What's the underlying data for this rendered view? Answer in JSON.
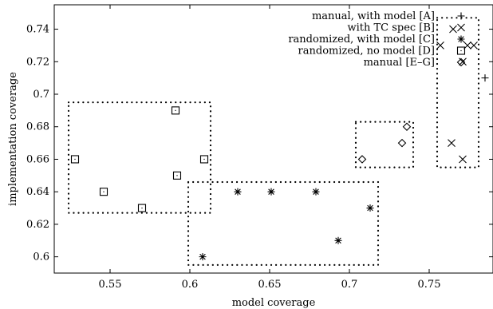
{
  "chart_data": {
    "type": "scatter",
    "xlabel": "model coverage",
    "ylabel": "implementation coverage",
    "xlim": [
      0.515,
      0.79
    ],
    "ylim": [
      0.59,
      0.755
    ],
    "x_ticks": [
      0.55,
      0.6,
      0.65,
      0.7,
      0.75
    ],
    "x_tick_labels": [
      "0.55",
      "0.6",
      "0.65",
      "0.7",
      "0.75"
    ],
    "y_ticks": [
      0.6,
      0.62,
      0.64,
      0.66,
      0.68,
      0.7,
      0.72,
      0.74
    ],
    "y_tick_labels": [
      "0.6",
      "0.62",
      "0.64",
      "0.66",
      "0.68",
      "0.7",
      "0.72",
      "0.74"
    ],
    "legend_position": "top-right",
    "series": [
      {
        "name": "manual, with model [A]",
        "marker": "plus",
        "points": [
          [
            0.785,
            0.71
          ]
        ]
      },
      {
        "name": "with TC spec [B]",
        "marker": "cross",
        "points": [
          [
            0.765,
            0.74
          ],
          [
            0.757,
            0.73
          ],
          [
            0.774,
            0.73
          ],
          [
            0.778,
            0.73
          ],
          [
            0.771,
            0.72
          ],
          [
            0.764,
            0.67
          ],
          [
            0.771,
            0.66
          ]
        ]
      },
      {
        "name": "randomized, with model [C]",
        "marker": "star",
        "points": [
          [
            0.608,
            0.6
          ],
          [
            0.63,
            0.64
          ],
          [
            0.651,
            0.64
          ],
          [
            0.679,
            0.64
          ],
          [
            0.713,
            0.63
          ],
          [
            0.693,
            0.61
          ]
        ]
      },
      {
        "name": "randomized, no model [D]",
        "marker": "square",
        "points": [
          [
            0.528,
            0.66
          ],
          [
            0.546,
            0.64
          ],
          [
            0.57,
            0.63
          ],
          [
            0.591,
            0.69
          ],
          [
            0.592,
            0.65
          ],
          [
            0.609,
            0.66
          ]
        ]
      },
      {
        "name": "manual [E–G]",
        "marker": "diamond",
        "points": [
          [
            0.708,
            0.66
          ],
          [
            0.733,
            0.67
          ],
          [
            0.736,
            0.68
          ]
        ]
      }
    ],
    "cluster_boxes": [
      {
        "x": [
          0.524,
          0.613
        ],
        "y": [
          0.627,
          0.695
        ]
      },
      {
        "x": [
          0.599,
          0.718
        ],
        "y": [
          0.595,
          0.646
        ]
      },
      {
        "x": [
          0.704,
          0.74
        ],
        "y": [
          0.655,
          0.683
        ]
      },
      {
        "x": [
          0.755,
          0.781
        ],
        "y": [
          0.655,
          0.747
        ]
      }
    ]
  }
}
